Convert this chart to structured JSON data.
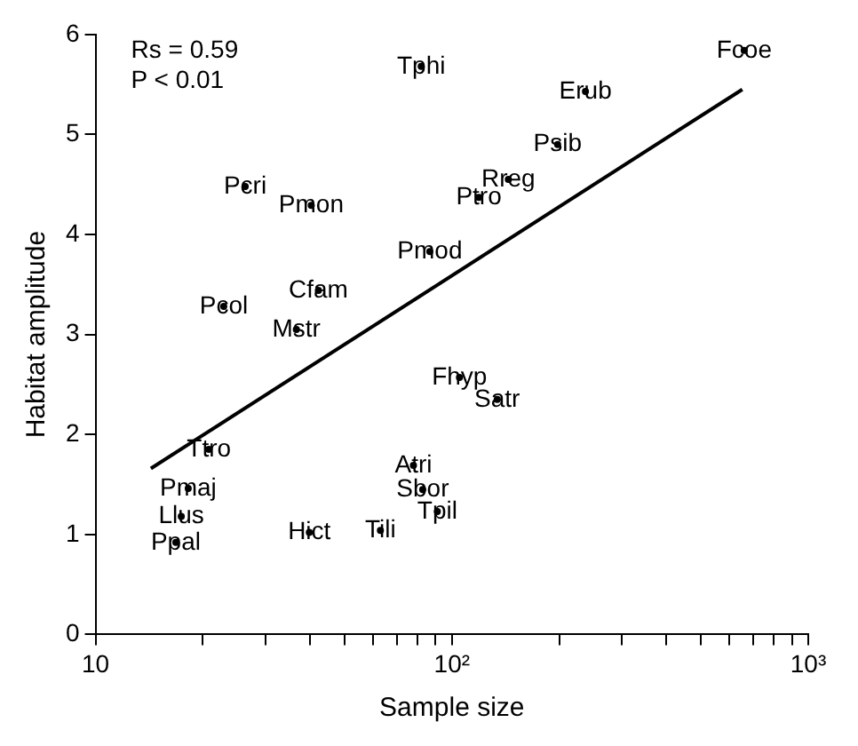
{
  "chart_data": {
    "type": "scatter",
    "xlabel": "Sample size",
    "ylabel": "Habitat amplitude",
    "log": "x",
    "xlim": [
      10,
      1000
    ],
    "ylim": [
      0,
      6
    ],
    "xticks": [
      10,
      {
        "value": 20,
        "label": null
      },
      {
        "value": 30,
        "label": null
      },
      {
        "value": 40,
        "label": null
      },
      {
        "value": 50,
        "label": null
      },
      {
        "value": 60,
        "label": null
      },
      {
        "value": 70,
        "label": null
      },
      {
        "value": 80,
        "label": null
      },
      {
        "value": 90,
        "label": null
      },
      {
        "value": 100,
        "label": "10²"
      },
      {
        "value": 200,
        "label": null
      },
      {
        "value": 300,
        "label": null
      },
      {
        "value": 400,
        "label": null
      },
      {
        "value": 500,
        "label": null
      },
      {
        "value": 600,
        "label": null
      },
      {
        "value": 700,
        "label": null
      },
      {
        "value": 800,
        "label": null
      },
      {
        "value": 900,
        "label": null
      },
      {
        "value": 1000,
        "label": "10³"
      }
    ],
    "yticks": [
      0,
      1,
      2,
      3,
      4,
      5,
      6
    ],
    "grid": false,
    "legend": false,
    "marker": "circle",
    "annotations": [
      "Rs = 0.59",
      "P < 0.01"
    ],
    "series": [
      {
        "name": "Fcoe",
        "color": "#000000",
        "x": [
          661
        ],
        "values": [
          5.84
        ]
      },
      {
        "name": "Tphi",
        "color": "#000000",
        "x": [
          82
        ],
        "values": [
          5.68
        ]
      },
      {
        "name": "Erub",
        "color": "#000000",
        "x": [
          237
        ],
        "values": [
          5.43
        ]
      },
      {
        "name": "Psib",
        "color": "#000000",
        "x": [
          198
        ],
        "values": [
          4.9
        ]
      },
      {
        "name": "Rreg",
        "color": "#000000",
        "x": [
          144
        ],
        "values": [
          4.55
        ]
      },
      {
        "name": "Ptro",
        "color": "#000000",
        "x": [
          119
        ],
        "values": [
          4.37
        ]
      },
      {
        "name": "Pcri",
        "color": "#000000",
        "x": [
          26.3
        ],
        "values": [
          4.48
        ]
      },
      {
        "name": "Pmon",
        "color": "#000000",
        "x": [
          40.3
        ],
        "values": [
          4.29
        ]
      },
      {
        "name": "Pmod",
        "color": "#000000",
        "x": [
          86.7
        ],
        "values": [
          3.83
        ]
      },
      {
        "name": "Cfam",
        "color": "#000000",
        "x": [
          42.2
        ],
        "values": [
          3.44
        ]
      },
      {
        "name": "Pcol",
        "color": "#000000",
        "x": [
          22.9
        ],
        "values": [
          3.28
        ]
      },
      {
        "name": "Mstr",
        "color": "#000000",
        "x": [
          36.6
        ],
        "values": [
          3.05
        ]
      },
      {
        "name": "Fhyp",
        "color": "#000000",
        "x": [
          105
        ],
        "values": [
          2.57
        ]
      },
      {
        "name": "Satr",
        "color": "#000000",
        "x": [
          134
        ],
        "values": [
          2.35
        ]
      },
      {
        "name": "Ttro",
        "color": "#000000",
        "x": [
          20.8
        ],
        "values": [
          1.85
        ]
      },
      {
        "name": "Atri",
        "color": "#000000",
        "x": [
          78
        ],
        "values": [
          1.69
        ]
      },
      {
        "name": "Pmaj",
        "color": "#000000",
        "x": [
          18.2
        ],
        "values": [
          1.46
        ]
      },
      {
        "name": "Sbor",
        "color": "#000000",
        "x": [
          82.8
        ],
        "values": [
          1.45
        ]
      },
      {
        "name": "Tpil",
        "color": "#000000",
        "x": [
          91
        ],
        "values": [
          1.23
        ]
      },
      {
        "name": "Llus",
        "color": "#000000",
        "x": [
          17.4
        ],
        "values": [
          1.18
        ]
      },
      {
        "name": "Tili",
        "color": "#000000",
        "x": [
          63
        ],
        "values": [
          1.04
        ]
      },
      {
        "name": "Hict",
        "color": "#000000",
        "x": [
          39.8
        ],
        "values": [
          1.02
        ]
      },
      {
        "name": "Ppal",
        "color": "#000000",
        "x": [
          16.8
        ],
        "values": [
          0.92
        ]
      },
      {
        "type": "line",
        "marker": "none",
        "color": "#000000",
        "x": [
          14.3,
          653
        ],
        "values": [
          1.66,
          5.45
        ]
      }
    ]
  }
}
